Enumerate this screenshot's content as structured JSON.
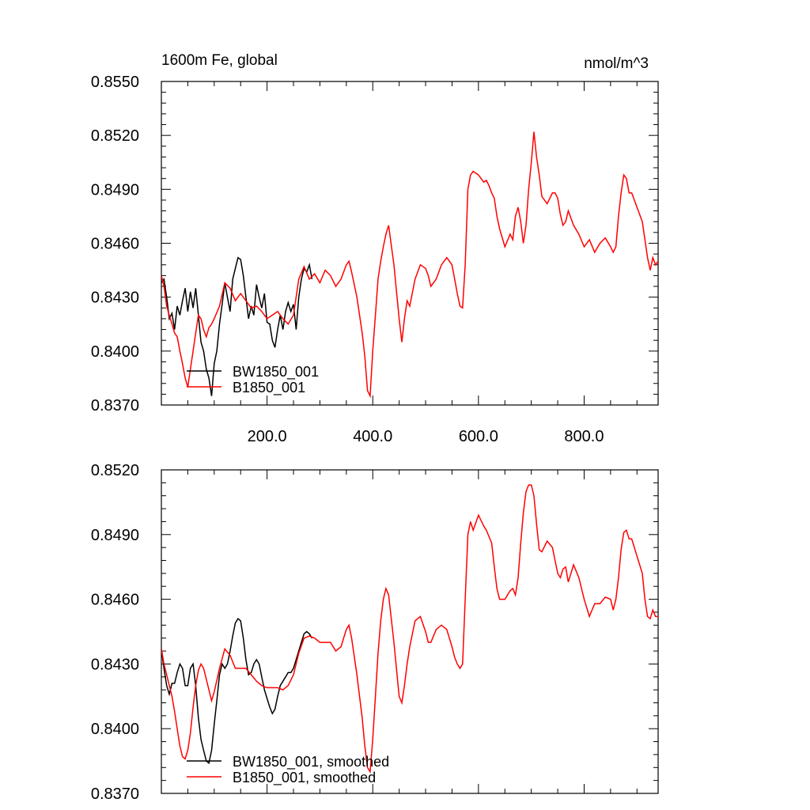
{
  "chart_data": [
    {
      "type": "line",
      "title_left": "1600m Fe, global",
      "title_right": "nmol/m^3",
      "xlim": [
        0,
        940
      ],
      "ylim": [
        0.837,
        0.855
      ],
      "y_ticks": [
        "0.8370",
        "0.8400",
        "0.8430",
        "0.8460",
        "0.8490",
        "0.8520",
        "0.8550"
      ],
      "x_ticks": [
        "200.0",
        "400.0",
        "600.0",
        "800.0"
      ],
      "legend": [
        "BW1850_001",
        "B1850_001"
      ],
      "legend_position": "bottom-left",
      "series": [
        {
          "name": "BW1850_001",
          "color": "#000000",
          "x": [
            0,
            5,
            10,
            15,
            20,
            25,
            30,
            35,
            40,
            45,
            50,
            55,
            60,
            65,
            70,
            75,
            80,
            85,
            90,
            95,
            100,
            105,
            110,
            115,
            120,
            125,
            130,
            135,
            140,
            145,
            150,
            155,
            160,
            165,
            170,
            175,
            180,
            185,
            190,
            195,
            200,
            205,
            210,
            215,
            220,
            225,
            230,
            235,
            240,
            245,
            250,
            255,
            260,
            265,
            270,
            275,
            280,
            285
          ],
          "values": [
            0.8438,
            0.844,
            0.843,
            0.8418,
            0.8421,
            0.8412,
            0.8425,
            0.842,
            0.8428,
            0.8435,
            0.8422,
            0.8433,
            0.8424,
            0.8435,
            0.842,
            0.8405,
            0.84,
            0.839,
            0.8385,
            0.8375,
            0.8393,
            0.84,
            0.8415,
            0.8426,
            0.8438,
            0.843,
            0.8422,
            0.844,
            0.8446,
            0.8452,
            0.8451,
            0.8442,
            0.843,
            0.8418,
            0.8425,
            0.842,
            0.8437,
            0.843,
            0.8424,
            0.8432,
            0.8416,
            0.8415,
            0.8406,
            0.8402,
            0.8412,
            0.842,
            0.8412,
            0.8422,
            0.8427,
            0.8422,
            0.8426,
            0.8412,
            0.843,
            0.844,
            0.8446,
            0.8444,
            0.8448,
            0.844
          ]
        },
        {
          "name": "B1850_001",
          "color": "#ff0000",
          "x": [
            0,
            5,
            10,
            15,
            20,
            25,
            30,
            35,
            40,
            45,
            50,
            55,
            60,
            65,
            70,
            75,
            80,
            85,
            90,
            95,
            100,
            110,
            120,
            130,
            140,
            150,
            160,
            170,
            180,
            190,
            200,
            210,
            220,
            230,
            240,
            250,
            260,
            270,
            280,
            290,
            300,
            310,
            320,
            330,
            340,
            350,
            355,
            360,
            370,
            380,
            385,
            390,
            395,
            400,
            405,
            410,
            415,
            420,
            425,
            430,
            440,
            450,
            455,
            460,
            465,
            470,
            480,
            490,
            500,
            505,
            510,
            520,
            530,
            540,
            550,
            555,
            560,
            565,
            570,
            575,
            580,
            585,
            590,
            600,
            610,
            615,
            620,
            625,
            630,
            635,
            640,
            650,
            660,
            665,
            670,
            675,
            680,
            685,
            690,
            695,
            700,
            705,
            710,
            715,
            720,
            730,
            740,
            745,
            750,
            755,
            760,
            765,
            770,
            780,
            790,
            800,
            810,
            820,
            830,
            840,
            850,
            855,
            860,
            865,
            870,
            875,
            880,
            885,
            890,
            900,
            910,
            915,
            920,
            925,
            930,
            935,
            940
          ],
          "values": [
            0.8442,
            0.8436,
            0.8425,
            0.842,
            0.8415,
            0.841,
            0.8408,
            0.84,
            0.8393,
            0.8385,
            0.838,
            0.839,
            0.84,
            0.841,
            0.842,
            0.8418,
            0.8412,
            0.8408,
            0.8413,
            0.8415,
            0.8418,
            0.8425,
            0.8438,
            0.8435,
            0.8428,
            0.8432,
            0.8428,
            0.8424,
            0.8425,
            0.8422,
            0.8418,
            0.842,
            0.8422,
            0.8418,
            0.8415,
            0.842,
            0.844,
            0.8447,
            0.844,
            0.8443,
            0.8438,
            0.8445,
            0.8442,
            0.8436,
            0.844,
            0.8448,
            0.845,
            0.8444,
            0.843,
            0.841,
            0.8397,
            0.8378,
            0.8375,
            0.84,
            0.842,
            0.844,
            0.845,
            0.8458,
            0.8465,
            0.847,
            0.8448,
            0.8418,
            0.8405,
            0.8418,
            0.8428,
            0.8425,
            0.844,
            0.8448,
            0.8446,
            0.8442,
            0.8436,
            0.844,
            0.8448,
            0.8452,
            0.8448,
            0.844,
            0.8432,
            0.8425,
            0.8424,
            0.8448,
            0.849,
            0.8498,
            0.85,
            0.8498,
            0.8494,
            0.8495,
            0.8492,
            0.8488,
            0.8485,
            0.8475,
            0.8468,
            0.8458,
            0.8465,
            0.8462,
            0.8475,
            0.848,
            0.8472,
            0.846,
            0.847,
            0.849,
            0.8505,
            0.8522,
            0.8508,
            0.8498,
            0.8486,
            0.8482,
            0.8488,
            0.8488,
            0.8485,
            0.8476,
            0.847,
            0.8472,
            0.8478,
            0.847,
            0.8465,
            0.8458,
            0.8462,
            0.8455,
            0.846,
            0.8463,
            0.8458,
            0.8455,
            0.8458,
            0.8475,
            0.8488,
            0.8498,
            0.8496,
            0.8488,
            0.8488,
            0.848,
            0.8472,
            0.8462,
            0.8452,
            0.8445,
            0.8452,
            0.8448,
            0.845
          ]
        }
      ]
    },
    {
      "type": "line",
      "xlim": [
        0,
        940
      ],
      "ylim": [
        0.837,
        0.852
      ],
      "y_ticks": [
        "0.8370",
        "0.8400",
        "0.8430",
        "0.8460",
        "0.8490",
        "0.8520"
      ],
      "x_ticks": [],
      "legend": [
        "BW1850_001, smoothed",
        "B1850_001, smoothed"
      ],
      "legend_position": "bottom-left",
      "series": [
        {
          "name": "BW1850_001, smoothed",
          "color": "#000000",
          "x": [
            0,
            5,
            10,
            15,
            20,
            25,
            30,
            35,
            40,
            45,
            50,
            55,
            60,
            65,
            70,
            75,
            80,
            85,
            90,
            95,
            100,
            105,
            110,
            115,
            120,
            125,
            130,
            135,
            140,
            145,
            150,
            155,
            160,
            165,
            170,
            175,
            180,
            185,
            190,
            195,
            200,
            205,
            210,
            215,
            220,
            225,
            230,
            235,
            240,
            245,
            250,
            255,
            260,
            265,
            270,
            275,
            280,
            285
          ],
          "values": [
            0.8437,
            0.8428,
            0.842,
            0.8416,
            0.8421,
            0.8421,
            0.8426,
            0.843,
            0.8428,
            0.842,
            0.842,
            0.8428,
            0.843,
            0.842,
            0.8405,
            0.8395,
            0.839,
            0.8385,
            0.8384,
            0.839,
            0.8402,
            0.8413,
            0.8425,
            0.843,
            0.8428,
            0.843,
            0.8436,
            0.8443,
            0.8449,
            0.8451,
            0.845,
            0.8442,
            0.8432,
            0.8425,
            0.8426,
            0.843,
            0.8432,
            0.843,
            0.8424,
            0.8418,
            0.8414,
            0.841,
            0.8407,
            0.8409,
            0.8415,
            0.842,
            0.8422,
            0.8424,
            0.8426,
            0.8426,
            0.8428,
            0.8432,
            0.8436,
            0.844,
            0.8444,
            0.8445,
            0.8444,
            0.8442
          ]
        },
        {
          "name": "B1850_001, smoothed",
          "color": "#ff0000",
          "x": [
            0,
            5,
            10,
            15,
            20,
            25,
            30,
            35,
            40,
            45,
            50,
            55,
            60,
            65,
            70,
            75,
            80,
            85,
            90,
            95,
            100,
            110,
            120,
            130,
            140,
            150,
            160,
            170,
            180,
            190,
            200,
            210,
            220,
            230,
            240,
            250,
            260,
            270,
            280,
            290,
            300,
            310,
            320,
            330,
            340,
            350,
            355,
            360,
            370,
            380,
            385,
            390,
            395,
            400,
            405,
            410,
            415,
            420,
            425,
            430,
            440,
            450,
            455,
            460,
            465,
            470,
            480,
            490,
            500,
            505,
            510,
            520,
            530,
            540,
            550,
            555,
            560,
            565,
            570,
            575,
            580,
            585,
            590,
            600,
            610,
            615,
            620,
            625,
            630,
            635,
            640,
            650,
            660,
            665,
            670,
            675,
            680,
            685,
            690,
            695,
            700,
            705,
            710,
            715,
            720,
            730,
            740,
            745,
            750,
            755,
            760,
            765,
            770,
            780,
            790,
            800,
            810,
            820,
            830,
            840,
            850,
            855,
            860,
            865,
            870,
            875,
            880,
            885,
            890,
            900,
            910,
            915,
            920,
            925,
            930,
            935,
            940
          ],
          "values": [
            0.8437,
            0.843,
            0.8425,
            0.842,
            0.8415,
            0.8408,
            0.84,
            0.8392,
            0.8387,
            0.8386,
            0.839,
            0.8398,
            0.841,
            0.842,
            0.8427,
            0.843,
            0.8428,
            0.8423,
            0.8418,
            0.8413,
            0.8417,
            0.8428,
            0.8437,
            0.8434,
            0.8428,
            0.8428,
            0.8428,
            0.8425,
            0.8422,
            0.842,
            0.8419,
            0.8419,
            0.8419,
            0.8418,
            0.842,
            0.8425,
            0.8435,
            0.8442,
            0.8443,
            0.8442,
            0.844,
            0.844,
            0.844,
            0.8436,
            0.8438,
            0.8446,
            0.8448,
            0.8442,
            0.8425,
            0.8405,
            0.8392,
            0.8382,
            0.838,
            0.8395,
            0.8415,
            0.8435,
            0.845,
            0.846,
            0.8465,
            0.8462,
            0.844,
            0.8415,
            0.8412,
            0.842,
            0.843,
            0.8438,
            0.845,
            0.8452,
            0.8445,
            0.844,
            0.844,
            0.8446,
            0.8448,
            0.8446,
            0.8438,
            0.8433,
            0.843,
            0.8428,
            0.843,
            0.846,
            0.849,
            0.8496,
            0.8492,
            0.8499,
            0.8494,
            0.8492,
            0.8489,
            0.8486,
            0.8475,
            0.8465,
            0.846,
            0.846,
            0.8464,
            0.8465,
            0.8462,
            0.847,
            0.8486,
            0.85,
            0.851,
            0.8513,
            0.8513,
            0.8508,
            0.8495,
            0.8483,
            0.8482,
            0.8487,
            0.8484,
            0.8478,
            0.8472,
            0.847,
            0.8474,
            0.8475,
            0.8468,
            0.8476,
            0.847,
            0.846,
            0.8452,
            0.8458,
            0.8458,
            0.8461,
            0.846,
            0.8455,
            0.846,
            0.847,
            0.8483,
            0.8491,
            0.8492,
            0.8488,
            0.8488,
            0.848,
            0.8472,
            0.846,
            0.8452,
            0.8451,
            0.8455,
            0.8452,
            0.8452
          ]
        }
      ]
    }
  ]
}
